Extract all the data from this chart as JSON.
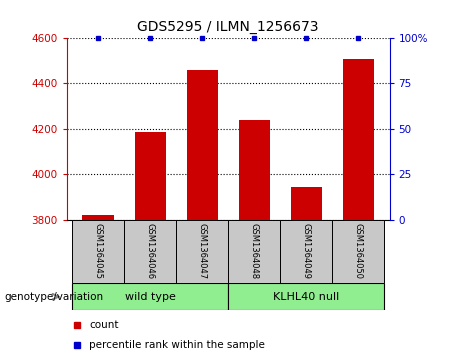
{
  "title": "GDS5295 / ILMN_1256673",
  "samples": [
    "GSM1364045",
    "GSM1364046",
    "GSM1364047",
    "GSM1364048",
    "GSM1364049",
    "GSM1364050"
  ],
  "counts": [
    3820,
    4185,
    4460,
    4240,
    3945,
    4510
  ],
  "percentile_ranks": [
    100,
    100,
    100,
    100,
    100,
    100
  ],
  "ylim_left": [
    3800,
    4600
  ],
  "ylim_right": [
    0,
    100
  ],
  "yticks_left": [
    3800,
    4000,
    4200,
    4400,
    4600
  ],
  "yticks_right": [
    0,
    25,
    50,
    75,
    100
  ],
  "bar_color": "#cc0000",
  "percentile_color": "#0000cc",
  "groups": [
    {
      "label": "wild type",
      "indices": [
        0,
        1,
        2
      ],
      "color": "#90ee90"
    },
    {
      "label": "KLHL40 null",
      "indices": [
        3,
        4,
        5
      ],
      "color": "#90ee90"
    }
  ],
  "sample_box_color": "#c8c8c8",
  "genotype_label": "genotype/variation",
  "legend_count_color": "#cc0000",
  "legend_percentile_color": "#0000cc"
}
